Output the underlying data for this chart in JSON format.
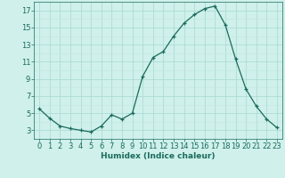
{
  "x": [
    0,
    1,
    2,
    3,
    4,
    5,
    6,
    7,
    8,
    9,
    10,
    11,
    12,
    13,
    14,
    15,
    16,
    17,
    18,
    19,
    20,
    21,
    22,
    23
  ],
  "y": [
    5.5,
    4.4,
    3.5,
    3.2,
    3.0,
    2.8,
    3.5,
    4.8,
    4.3,
    5.0,
    9.3,
    11.5,
    12.2,
    14.0,
    15.5,
    16.5,
    17.2,
    17.5,
    15.3,
    11.3,
    7.8,
    5.8,
    4.3,
    3.3
  ],
  "line_color": "#1a6b5c",
  "marker": "+",
  "marker_size": 3,
  "bg_color": "#cff0eb",
  "grid_color_major": "#a8d8d0",
  "grid_color_minor": "#c0e8e0",
  "xlabel": "Humidex (Indice chaleur)",
  "xlim": [
    -0.5,
    23.5
  ],
  "ylim": [
    2.0,
    18.0
  ],
  "yticks": [
    3,
    5,
    7,
    9,
    11,
    13,
    15,
    17
  ],
  "xticks": [
    0,
    1,
    2,
    3,
    4,
    5,
    6,
    7,
    8,
    9,
    10,
    11,
    12,
    13,
    14,
    15,
    16,
    17,
    18,
    19,
    20,
    21,
    22,
    23
  ],
  "label_fontsize": 6.5,
  "tick_fontsize": 6.0,
  "tick_color": "#1a6b5c"
}
